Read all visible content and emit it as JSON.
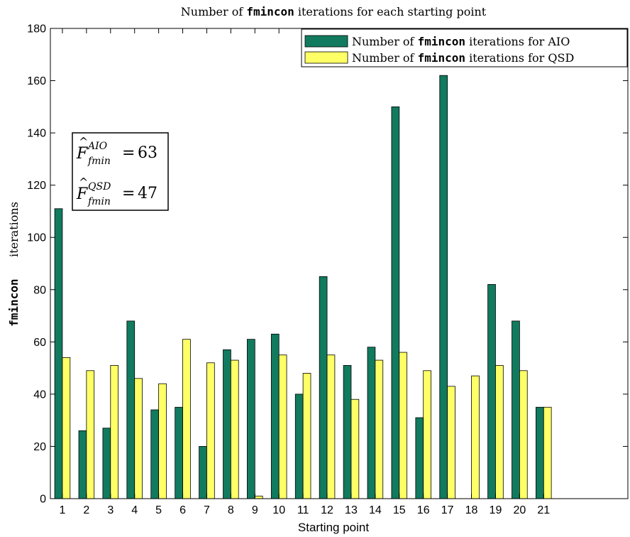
{
  "chart_data": {
    "type": "bar",
    "title": {
      "prefix": "Number of ",
      "code": "fmincon",
      "suffix": " iterations for each starting point"
    },
    "xlabel": "Starting point",
    "ylabel": {
      "code": "fmincon",
      "suffix": "iterations"
    },
    "categories": [
      "1",
      "2",
      "3",
      "4",
      "5",
      "6",
      "7",
      "8",
      "9",
      "10",
      "11",
      "12",
      "13",
      "14",
      "15",
      "16",
      "17",
      "18",
      "19",
      "20",
      "21"
    ],
    "ylim": [
      0,
      180
    ],
    "yticks": [
      0,
      20,
      40,
      60,
      80,
      100,
      120,
      140,
      160,
      180
    ],
    "xlim": [
      0.5,
      24.5
    ],
    "grid": false,
    "legend_position": "top-right",
    "series": [
      {
        "name": "Number of fmincon iterations for AIO",
        "legend": {
          "prefix": "Number of ",
          "code": "fmincon",
          "suffix": " iterations for AIO"
        },
        "color": "#117a5f",
        "values": [
          111,
          26,
          27,
          68,
          34,
          35,
          20,
          57,
          61,
          63,
          40,
          85,
          51,
          58,
          150,
          31,
          162,
          0,
          82,
          68,
          35
        ]
      },
      {
        "name": "Number of fmincon iterations for QSD",
        "legend": {
          "prefix": "Number of ",
          "code": "fmincon",
          "suffix": " iterations for QSD"
        },
        "color": "#ffff66",
        "values": [
          54,
          49,
          51,
          46,
          44,
          61,
          52,
          53,
          1,
          55,
          48,
          55,
          38,
          53,
          56,
          49,
          43,
          47,
          51,
          49,
          35
        ]
      }
    ],
    "annotations": [
      {
        "base": "F",
        "sup": "AIO",
        "sub": "fmin",
        "value": "63"
      },
      {
        "base": "F",
        "sup": "QSD",
        "sub": "fmin",
        "value": "47"
      }
    ]
  }
}
